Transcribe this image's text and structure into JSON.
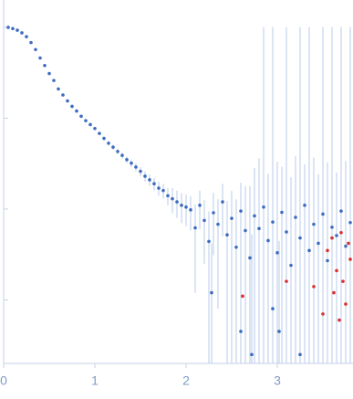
{
  "chart_data": {
    "type": "scatter",
    "log_y": true,
    "xlim": [
      0,
      3.83
    ],
    "xticks": [
      0,
      1,
      2,
      3
    ],
    "ylim": [
      0.0002,
      2
    ],
    "yticks": [
      0.001,
      0.01,
      0.1,
      1
    ],
    "error_color": "#b9cbe8",
    "series": [
      {
        "color": "#3d6cc0",
        "x": [
          0.05,
          0.1,
          0.15,
          0.2,
          0.25,
          0.3,
          0.35,
          0.4,
          0.45,
          0.5,
          0.55,
          0.6,
          0.65,
          0.7,
          0.75,
          0.8,
          0.85,
          0.9,
          0.95,
          1.0,
          1.05,
          1.1,
          1.15,
          1.2,
          1.25,
          1.3,
          1.35,
          1.4,
          1.45,
          1.5,
          1.55,
          1.6,
          1.65,
          1.7,
          1.75,
          1.8,
          1.85,
          1.9,
          1.95,
          2.0,
          2.05,
          2.1,
          2.15,
          2.2,
          2.25,
          2.3,
          2.35,
          2.4,
          2.45,
          2.5,
          2.55,
          2.6,
          2.65,
          2.7,
          2.75,
          2.8,
          2.85,
          2.9,
          2.95,
          3.0,
          3.05,
          3.1,
          3.15,
          3.2,
          3.25,
          3.3,
          3.35,
          3.4,
          3.45,
          3.5,
          3.55,
          3.6,
          3.65,
          3.7,
          3.75,
          3.8,
          2.28,
          2.6,
          2.72,
          3.02,
          3.25,
          2.95
        ],
        "values": [
          1.0,
          0.97,
          0.93,
          0.87,
          0.79,
          0.68,
          0.57,
          0.46,
          0.38,
          0.31,
          0.26,
          0.21,
          0.18,
          0.155,
          0.135,
          0.12,
          0.105,
          0.094,
          0.085,
          0.077,
          0.068,
          0.06,
          0.053,
          0.048,
          0.043,
          0.039,
          0.035,
          0.032,
          0.029,
          0.026,
          0.023,
          0.021,
          0.019,
          0.017,
          0.016,
          0.014,
          0.013,
          0.012,
          0.011,
          0.0105,
          0.0098,
          0.0062,
          0.011,
          0.0075,
          0.0044,
          0.0091,
          0.0068,
          0.012,
          0.0052,
          0.0079,
          0.0038,
          0.0095,
          0.0058,
          0.0029,
          0.0084,
          0.0061,
          0.0105,
          0.0045,
          0.0072,
          0.0033,
          0.0092,
          0.0056,
          0.0024,
          0.0081,
          0.0048,
          0.011,
          0.0035,
          0.0068,
          0.0042,
          0.0088,
          0.0027,
          0.0063,
          0.0051,
          0.0095,
          0.0039,
          0.0071,
          0.0012,
          0.00045,
          0.00025,
          0.00045,
          0.00025,
          0.0008
        ],
        "errors": [
          0.01,
          0.01,
          0.01,
          0.01,
          0.01,
          0.01,
          0.008,
          0.007,
          0.006,
          0.005,
          0.005,
          0.004,
          0.004,
          0.004,
          0.003,
          0.003,
          0.003,
          0.003,
          0.003,
          0.003,
          0.003,
          0.003,
          0.003,
          0.003,
          0.003,
          0.003,
          0.003,
          0.003,
          0.003,
          0.003,
          0.003,
          0.003,
          0.003,
          0.003,
          0.003,
          0.003,
          0.004,
          0.004,
          0.004,
          0.004,
          0.004,
          0.005,
          0.005,
          0.005,
          0.005,
          0.006,
          0.006,
          0.007,
          0.007,
          0.008,
          0.009,
          0.01,
          0.012,
          0.015,
          0.02,
          0.03,
          1.0,
          0.02,
          1.0,
          0.03,
          0.02,
          1.0,
          0.02,
          0.03,
          1.0,
          0.02,
          1.0,
          0.03,
          0.02,
          1.0,
          0.03,
          1.0,
          0.02,
          1.0,
          0.03,
          1.0,
          0.003,
          0.004,
          0.005,
          0.004,
          0.006,
          0.004
        ]
      },
      {
        "color": "#d93030",
        "x": [
          3.55,
          3.6,
          3.62,
          3.65,
          3.68,
          3.7,
          3.72,
          3.75,
          3.78,
          3.8,
          3.1,
          3.4,
          3.5,
          2.62
        ],
        "values": [
          0.0035,
          0.0048,
          0.0012,
          0.0021,
          0.0006,
          0.0055,
          0.0016,
          0.0009,
          0.0042,
          0.0028,
          0.0016,
          0.0014,
          0.0007,
          0.0011
        ]
      }
    ]
  }
}
